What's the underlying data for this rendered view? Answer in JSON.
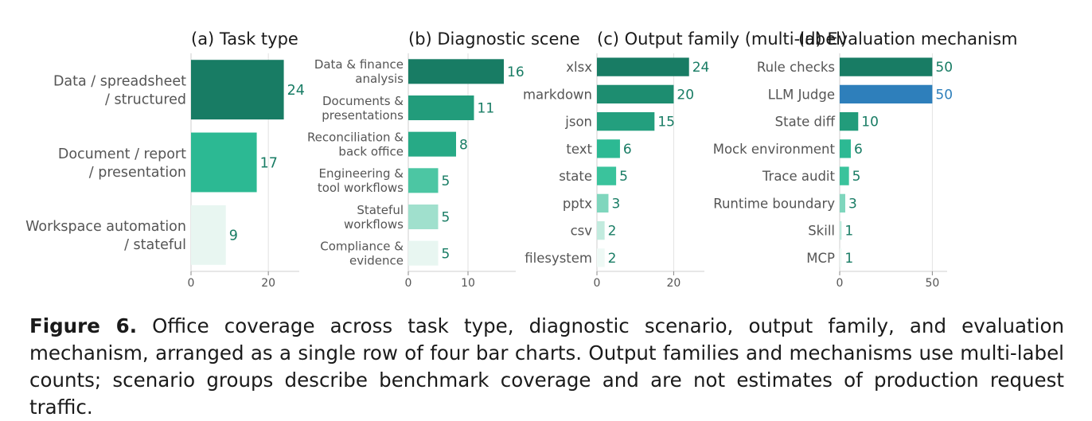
{
  "chart_data": [
    {
      "type": "bar",
      "orientation": "horizontal",
      "title": "(a)  Task type",
      "categories": [
        "Data / spreadsheet\n/ structured",
        "Document / report\n/ presentation",
        "Workspace automation\n/ stateful"
      ],
      "values": [
        24,
        17,
        9
      ],
      "xlim": [
        0,
        28
      ],
      "xticks": [
        "0",
        "20"
      ],
      "xtick_values": [
        0,
        20
      ],
      "bar_colors": [
        "#187c64",
        "#2cb993",
        "#e8f6f1"
      ],
      "label_color": "#187c64"
    },
    {
      "type": "bar",
      "orientation": "horizontal",
      "title": "(b)  Diagnostic scene",
      "categories": [
        "Data & finance\nanalysis",
        "Documents &\npresentations",
        "Reconciliation &\nback office",
        "Engineering &\ntool workflows",
        "Stateful\nworkflows",
        "Compliance &\nevidence"
      ],
      "values": [
        16,
        11,
        8,
        5,
        5,
        5
      ],
      "xlim": [
        0,
        18
      ],
      "xticks": [
        "0",
        "10"
      ],
      "xtick_values": [
        0,
        10
      ],
      "bar_colors": [
        "#187c64",
        "#229c7b",
        "#27aa86",
        "#4cc6a3",
        "#a0e0cd",
        "#e8f6f1"
      ],
      "label_color": "#187c64"
    },
    {
      "type": "bar",
      "orientation": "horizontal",
      "title": "(c)  Output family (multi-label)",
      "categories": [
        "xlsx",
        "markdown",
        "json",
        "text",
        "state",
        "pptx",
        "csv",
        "filesystem"
      ],
      "values": [
        24,
        20,
        15,
        6,
        5,
        3,
        2,
        2
      ],
      "xlim": [
        0,
        28
      ],
      "xticks": [
        "0",
        "20"
      ],
      "xtick_values": [
        0,
        20
      ],
      "bar_colors": [
        "#187c64",
        "#1d8d70",
        "#239f7e",
        "#2cb993",
        "#3ac39c",
        "#7fd6bd",
        "#c2ebde",
        "#eef9f5"
      ],
      "label_color": "#187c64"
    },
    {
      "type": "bar",
      "orientation": "horizontal",
      "title": "(d)  Evaluation mechanism",
      "categories": [
        "Rule checks",
        "LLM Judge",
        "State diff",
        "Mock environment",
        "Trace audit",
        "Runtime boundary",
        "Skill",
        "MCP"
      ],
      "values": [
        50,
        50,
        10,
        6,
        5,
        3,
        1,
        1
      ],
      "xlim": [
        0,
        58
      ],
      "xticks": [
        "0",
        "50"
      ],
      "xtick_values": [
        0,
        50
      ],
      "bar_colors": [
        "#187c64",
        "#2e7fbb",
        "#229c7b",
        "#2cb993",
        "#3ac39c",
        "#7fd6bd",
        "#c2ebde",
        "#eef9f5"
      ],
      "label_colors": [
        "#187c64",
        "#2e7fbb",
        "#187c64",
        "#187c64",
        "#187c64",
        "#187c64",
        "#187c64",
        "#187c64"
      ],
      "label_color": "#187c64"
    }
  ],
  "caption": {
    "label": "Figure 6.",
    "text": " Office coverage across task type, diagnostic scenario, output family, and evaluation mechanism, arranged as a single row of four bar charts.  Output families and mechanisms use multi-label counts; scenario groups describe benchmark coverage and are not estimates of production request traffic."
  }
}
